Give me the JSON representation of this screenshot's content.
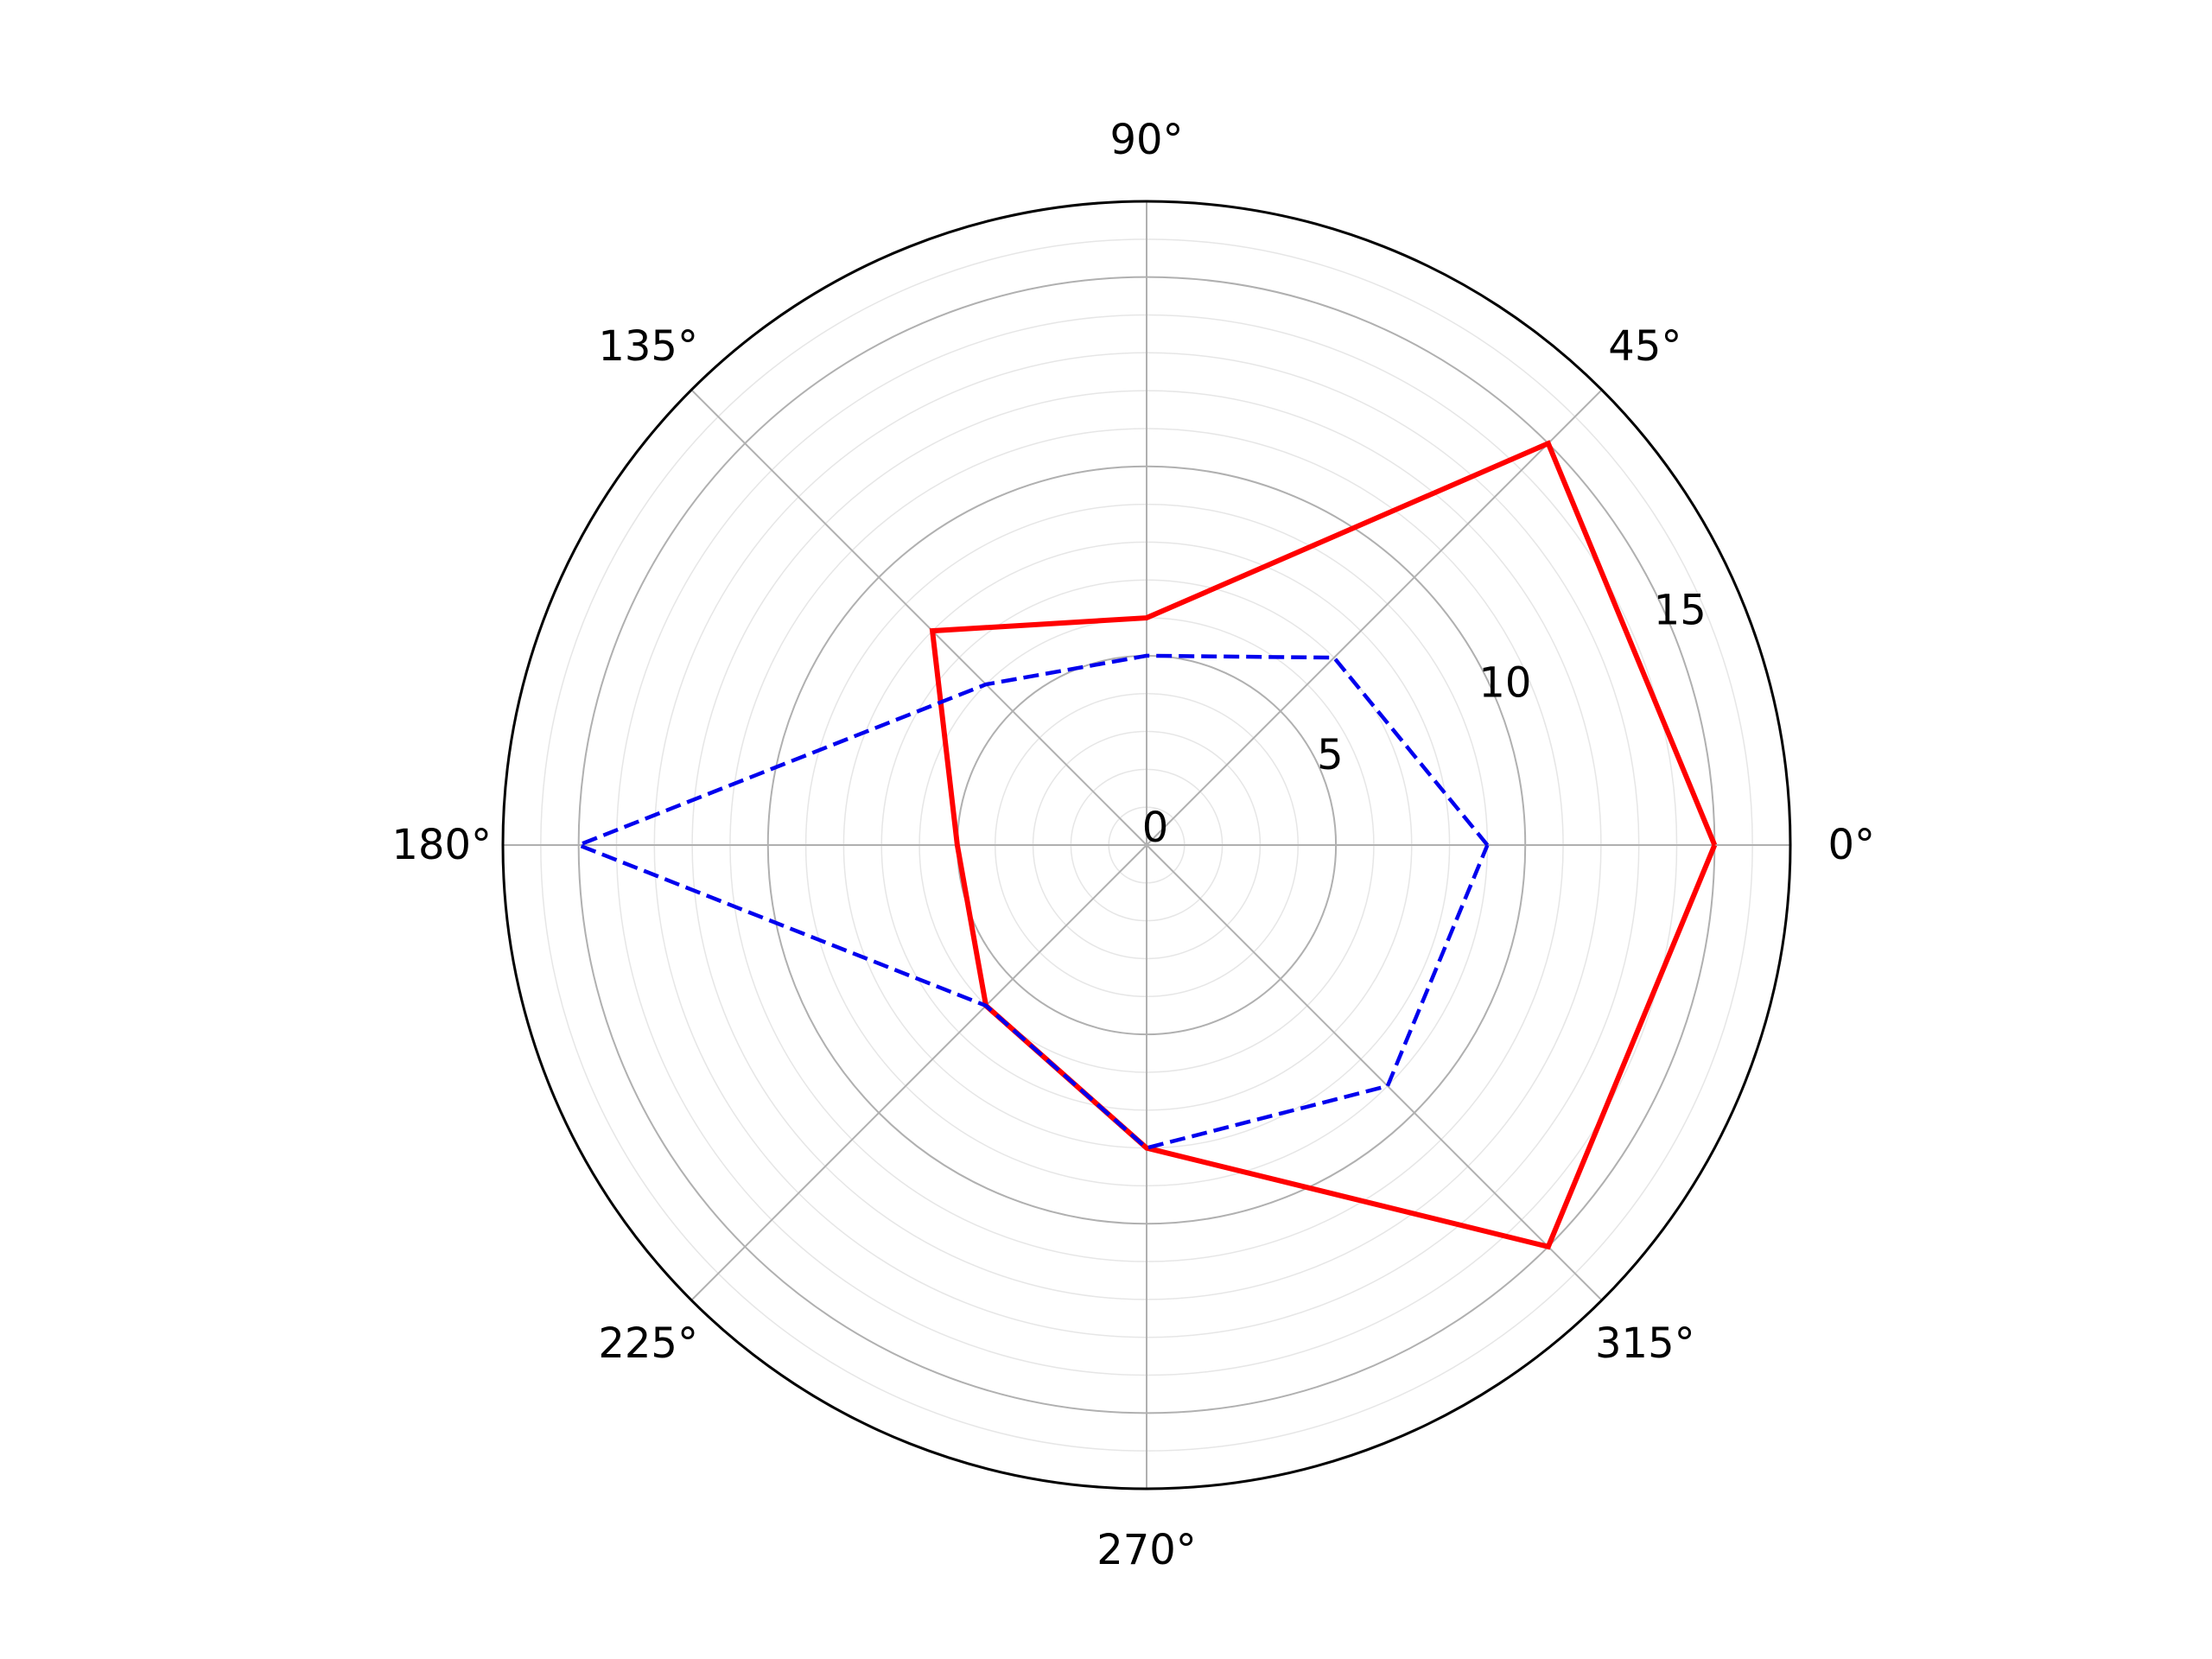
{
  "chart_data": {
    "type": "polar-line",
    "theta_unit": "degrees",
    "theta_ticks": [
      "0°",
      "45°",
      "90°",
      "135°",
      "180°",
      "225°",
      "270°",
      "315°"
    ],
    "theta_values": [
      0,
      45,
      90,
      135,
      180,
      225,
      270,
      315
    ],
    "r_ticks": [
      "0",
      "5",
      "10",
      "15"
    ],
    "r_tick_values": [
      0,
      5,
      10,
      15
    ],
    "r_minor_step": 1,
    "rlim": [
      0,
      17
    ],
    "r_label_angle": 22.5,
    "grid": true,
    "series": [
      {
        "theta": [
          0,
          45,
          90,
          135,
          180,
          225,
          270,
          315,
          0
        ],
        "r": [
          15,
          15,
          6,
          8,
          5,
          6,
          8,
          15,
          15
        ],
        "color": "#ff0000",
        "style": "solid"
      },
      {
        "theta": [
          0,
          45,
          90,
          135,
          180,
          225,
          270,
          315,
          0
        ],
        "r": [
          9,
          7,
          5,
          6,
          15,
          6,
          8,
          9,
          9
        ],
        "color": "#0000ee",
        "style": "dashed"
      }
    ]
  }
}
